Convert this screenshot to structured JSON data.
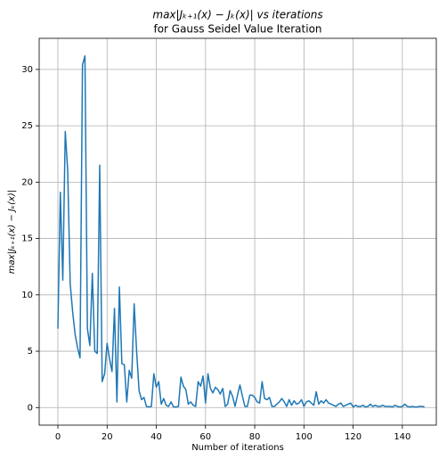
{
  "chart_data": {
    "type": "line",
    "title": "max|Jₖ₊₁(x) − Jₖ(x)| vs iterations",
    "subtitle": "for Gauss Seidel Value Iteration",
    "xlabel": "Number of iterations",
    "ylabel": "max|Jₖ₊₁(x) − Jₖ(x)|",
    "x": [
      0,
      1,
      2,
      3,
      4,
      5,
      6,
      7,
      8,
      9,
      10,
      11,
      12,
      13,
      14,
      15,
      16,
      17,
      18,
      19,
      20,
      21,
      22,
      23,
      24,
      25,
      26,
      27,
      28,
      29,
      30,
      31,
      32,
      33,
      34,
      35,
      36,
      37,
      38,
      39,
      40,
      41,
      42,
      43,
      44,
      45,
      46,
      47,
      48,
      49,
      50,
      51,
      52,
      53,
      54,
      55,
      56,
      57,
      58,
      59,
      60,
      61,
      62,
      63,
      64,
      65,
      66,
      67,
      68,
      69,
      70,
      71,
      72,
      73,
      74,
      75,
      76,
      77,
      78,
      79,
      80,
      81,
      82,
      83,
      84,
      85,
      86,
      87,
      88,
      89,
      90,
      91,
      92,
      93,
      94,
      95,
      96,
      97,
      98,
      99,
      100,
      101,
      102,
      103,
      104,
      105,
      106,
      107,
      108,
      109,
      110,
      111,
      112,
      113,
      114,
      115,
      116,
      117,
      118,
      119,
      120,
      121,
      122,
      123,
      124,
      125,
      126,
      127,
      128,
      129,
      130,
      131,
      132,
      133,
      134,
      135,
      136,
      137,
      138,
      139,
      140,
      141,
      142,
      143,
      144,
      145,
      146,
      147,
      148,
      149
    ],
    "series": [
      {
        "color": "#1f77b4",
        "values": [
          7.0,
          19.1,
          11.3,
          24.5,
          21,
          11,
          8.5,
          6.5,
          5.3,
          4.4,
          30.4,
          31.2,
          7,
          5.5,
          11.9,
          5,
          4.8,
          21.5,
          2.3,
          3,
          5.7,
          4.3,
          3.2,
          8.8,
          0.5,
          10.7,
          3.9,
          3.8,
          0.5,
          3.3,
          2.6,
          9.2,
          5,
          1.5,
          0.7,
          0.9,
          0.1,
          0.05,
          0.1,
          3,
          1.8,
          2.3,
          0.3,
          0.8,
          0.2,
          0.1,
          0.5,
          0.05,
          0.05,
          0.1,
          2.7,
          1.9,
          1.6,
          0.3,
          0.5,
          0.2,
          0.1,
          2.3,
          1.9,
          2.8,
          0.4,
          3,
          1.7,
          1.3,
          1.8,
          1.6,
          1.2,
          1.7,
          0.1,
          0.3,
          1.5,
          1,
          0.1,
          1.1,
          2,
          1,
          0.1,
          0.1,
          1.1,
          1.1,
          0.9,
          0.5,
          0.4,
          2.3,
          0.8,
          0.7,
          0.9,
          0.1,
          0.1,
          0.3,
          0.5,
          0.8,
          0.5,
          0.1,
          0.7,
          0.2,
          0.6,
          0.3,
          0.4,
          0.7,
          0.1,
          0.5,
          0.6,
          0.4,
          0.2,
          1.4,
          0.3,
          0.6,
          0.4,
          0.7,
          0.4,
          0.3,
          0.2,
          0.1,
          0.3,
          0.4,
          0.1,
          0.2,
          0.3,
          0.4,
          0.05,
          0.2,
          0.1,
          0.1,
          0.2,
          0.05,
          0.1,
          0.3,
          0.1,
          0.2,
          0.1,
          0.1,
          0.2,
          0.1,
          0.1,
          0.1,
          0.05,
          0.2,
          0.1,
          0.05,
          0.1,
          0.3,
          0.1,
          0.05,
          0.1,
          0.05,
          0.05,
          0.1,
          0.1,
          0.05
        ]
      }
    ],
    "xlim": [
      -7.6,
      153.8
    ],
    "xticks": [
      0,
      20,
      40,
      60,
      80,
      100,
      120,
      140
    ],
    "ylim": [
      -1.56,
      32.76
    ],
    "yticks": [
      0,
      5,
      10,
      15,
      20,
      25,
      30
    ],
    "grid": true
  }
}
